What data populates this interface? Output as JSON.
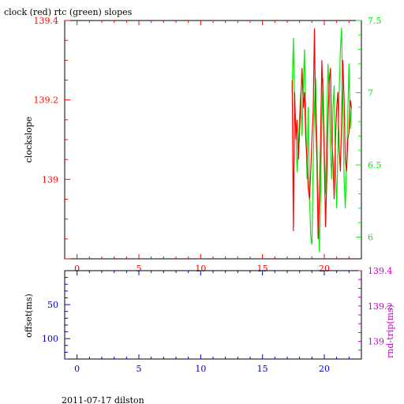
{
  "colors": {
    "clock": "#ff0000",
    "rtc": "#00ee00",
    "offset": "#0000cc",
    "rtrip": "#cc00cc",
    "frame": "#000000"
  },
  "chart_data": [
    {
      "type": "line",
      "title": "clock (red) rtc (green) slopes",
      "ylabel": "clockslope",
      "xlim": [
        -1,
        23
      ],
      "ylim": [
        138.8,
        139.4
      ],
      "y2lim": [
        5.85,
        7.5
      ],
      "x_ticks": [
        "0",
        "5",
        "10",
        "15",
        "20"
      ],
      "y_ticks": [
        "139",
        "139.2",
        "139.4"
      ],
      "y2_ticks": [
        "6",
        "6.5",
        "7",
        "7.5"
      ],
      "series": [
        {
          "axis": "right",
          "values": [
            [
              17.4,
              7.0
            ],
            [
              17.5,
              7.38
            ],
            [
              17.6,
              6.9
            ],
            [
              17.7,
              6.75
            ],
            [
              17.8,
              6.45
            ],
            [
              17.9,
              6.6
            ],
            [
              18.0,
              6.85
            ],
            [
              18.1,
              7.0
            ],
            [
              18.2,
              6.7
            ],
            [
              18.3,
              7.05
            ],
            [
              18.4,
              7.3
            ],
            [
              18.5,
              6.85
            ],
            [
              18.6,
              6.4
            ],
            [
              18.7,
              6.9
            ],
            [
              18.8,
              6.3
            ],
            [
              18.9,
              6.0
            ],
            [
              19.0,
              5.95
            ],
            [
              19.1,
              6.5
            ],
            [
              19.2,
              6.9
            ],
            [
              19.3,
              7.1
            ],
            [
              19.4,
              6.7
            ],
            [
              19.5,
              6.2
            ],
            [
              19.6,
              5.9
            ],
            [
              19.7,
              6.3
            ],
            [
              19.8,
              6.8
            ],
            [
              19.9,
              7.1
            ],
            [
              20.0,
              6.6
            ],
            [
              20.1,
              6.3
            ],
            [
              20.2,
              6.8
            ],
            [
              20.3,
              7.2
            ],
            [
              20.4,
              7.0
            ],
            [
              20.5,
              6.6
            ],
            [
              20.6,
              6.4
            ],
            [
              20.7,
              6.9
            ],
            [
              20.8,
              7.05
            ],
            [
              20.9,
              6.5
            ],
            [
              21.0,
              6.2
            ],
            [
              21.1,
              6.6
            ],
            [
              21.2,
              7.0
            ],
            [
              21.3,
              7.3
            ],
            [
              21.4,
              7.45
            ],
            [
              21.5,
              6.9
            ],
            [
              21.6,
              6.4
            ],
            [
              21.7,
              6.2
            ],
            [
              21.8,
              6.5
            ],
            [
              21.9,
              6.85
            ],
            [
              22.0,
              7.2
            ],
            [
              22.1,
              6.75
            ],
            [
              22.2,
              6.9
            ]
          ]
        },
        {
          "axis": "left",
          "values": [
            [
              17.4,
              139.25
            ],
            [
              17.5,
              138.87
            ],
            [
              17.6,
              139.22
            ],
            [
              17.7,
              139.1
            ],
            [
              17.8,
              139.15
            ],
            [
              17.9,
              139.05
            ],
            [
              18.0,
              139.12
            ],
            [
              18.1,
              139.2
            ],
            [
              18.2,
              139.28
            ],
            [
              18.3,
              139.18
            ],
            [
              18.4,
              139.22
            ],
            [
              18.5,
              139.1
            ],
            [
              18.6,
              139.05
            ],
            [
              18.7,
              138.98
            ],
            [
              18.8,
              138.95
            ],
            [
              18.9,
              139.02
            ],
            [
              19.0,
              139.1
            ],
            [
              19.1,
              139.17
            ],
            [
              19.2,
              139.38
            ],
            [
              19.3,
              139.15
            ],
            [
              19.4,
              139.05
            ],
            [
              19.5,
              138.85
            ],
            [
              19.6,
              138.95
            ],
            [
              19.7,
              139.1
            ],
            [
              19.8,
              139.3
            ],
            [
              19.9,
              139.2
            ],
            [
              20.0,
              139.05
            ],
            [
              20.1,
              138.88
            ],
            [
              20.2,
              139.0
            ],
            [
              20.3,
              139.15
            ],
            [
              20.4,
              139.25
            ],
            [
              20.5,
              139.28
            ],
            [
              20.6,
              139.1
            ],
            [
              20.7,
              139.05
            ],
            [
              20.8,
              138.95
            ],
            [
              20.9,
              139.1
            ],
            [
              21.0,
              139.18
            ],
            [
              21.1,
              139.22
            ],
            [
              21.2,
              139.08
            ],
            [
              21.3,
              139.02
            ],
            [
              21.4,
              139.15
            ],
            [
              21.5,
              139.3
            ],
            [
              21.6,
              139.2
            ],
            [
              21.7,
              139.05
            ],
            [
              21.8,
              139.02
            ],
            [
              21.9,
              139.1
            ],
            [
              22.0,
              139.12
            ],
            [
              22.1,
              139.2
            ],
            [
              22.2,
              139.18
            ]
          ]
        }
      ]
    },
    {
      "type": "line",
      "ylabel": "offset(ms)",
      "y2label": "rnd-trip(ms)",
      "xlim": [
        -1,
        23
      ],
      "ylim": [
        130,
        0
      ],
      "y2lim": [
        138.9,
        139.4
      ],
      "x_ticks": [
        "0",
        "5",
        "10",
        "15",
        "20"
      ],
      "y_ticks": [
        "50",
        "100"
      ],
      "y2_ticks": [
        "139",
        "139.2",
        "139.4"
      ],
      "series": []
    }
  ],
  "footer": {
    "text": "2011-07-17 dilston"
  }
}
